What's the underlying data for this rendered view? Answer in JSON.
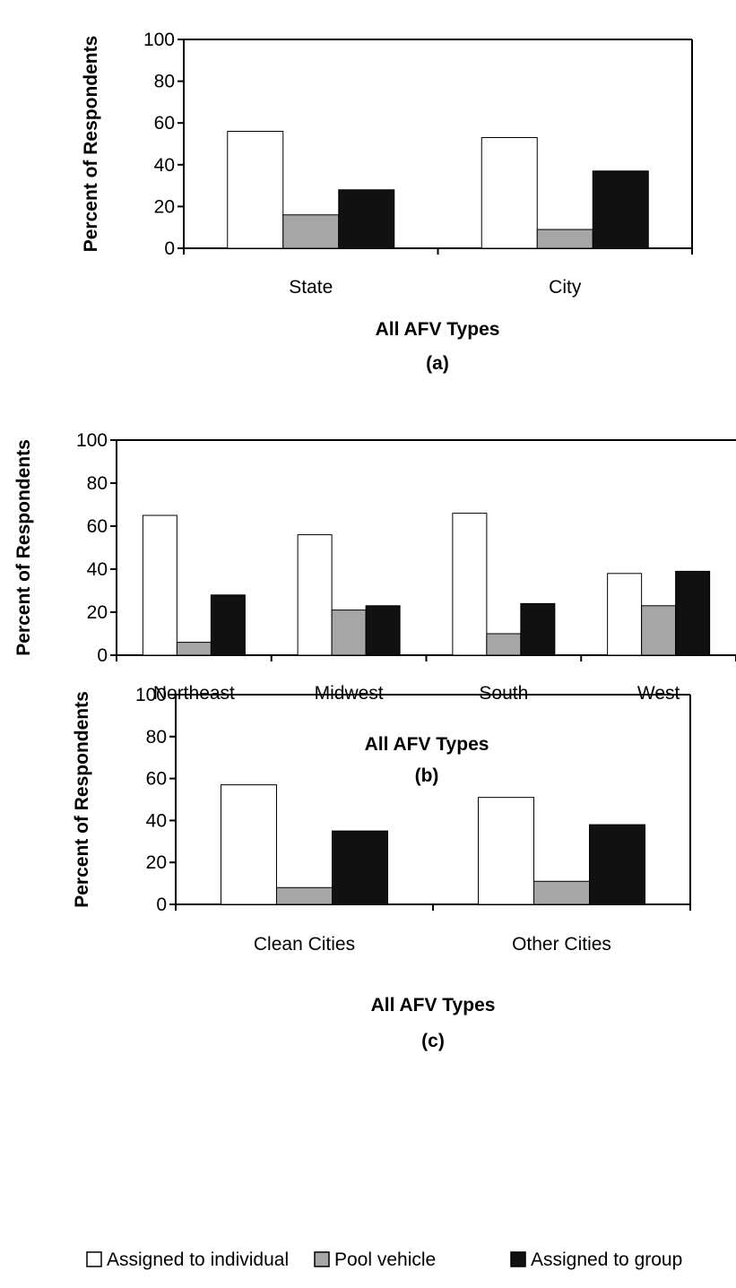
{
  "legend": [
    {
      "label": "Assigned to individual",
      "color": "#ffffff"
    },
    {
      "label": "Pool vehicle",
      "color": "#a6a6a6"
    },
    {
      "label": "Assigned to group",
      "color": "#111111"
    }
  ],
  "chart_data": [
    {
      "type": "bar",
      "panel_label": "(a)",
      "xlabel": "All AFV Types",
      "ylabel": "Percent of Respondents",
      "ylim": [
        0,
        100
      ],
      "yticks": [
        0,
        20,
        40,
        60,
        80,
        100
      ],
      "categories": [
        "State",
        "City"
      ],
      "series": [
        {
          "name": "Assigned to individual",
          "values": [
            56,
            53
          ]
        },
        {
          "name": "Pool vehicle",
          "values": [
            16,
            9
          ]
        },
        {
          "name": "Assigned to group",
          "values": [
            28,
            37
          ]
        }
      ]
    },
    {
      "type": "bar",
      "panel_label": "(b)",
      "xlabel": "All AFV Types",
      "ylabel": "Percent of Respondents",
      "ylim": [
        0,
        100
      ],
      "yticks": [
        0,
        20,
        40,
        60,
        80,
        100
      ],
      "categories": [
        "Northeast",
        "Midwest",
        "South",
        "West"
      ],
      "series": [
        {
          "name": "Assigned to individual",
          "values": [
            65,
            56,
            66,
            38
          ]
        },
        {
          "name": "Pool vehicle",
          "values": [
            6,
            21,
            10,
            23
          ]
        },
        {
          "name": "Assigned to group",
          "values": [
            28,
            23,
            24,
            39
          ]
        }
      ]
    },
    {
      "type": "bar",
      "panel_label": "(c)",
      "xlabel": "All AFV Types",
      "ylabel": "Percent of Respondents",
      "ylim": [
        0,
        100
      ],
      "yticks": [
        0,
        20,
        40,
        60,
        80,
        100
      ],
      "categories": [
        "Clean Cities",
        "Other Cities"
      ],
      "series": [
        {
          "name": "Assigned to individual",
          "values": [
            57,
            51
          ]
        },
        {
          "name": "Pool vehicle",
          "values": [
            8,
            11
          ]
        },
        {
          "name": "Assigned to group",
          "values": [
            35,
            38
          ]
        }
      ]
    }
  ]
}
